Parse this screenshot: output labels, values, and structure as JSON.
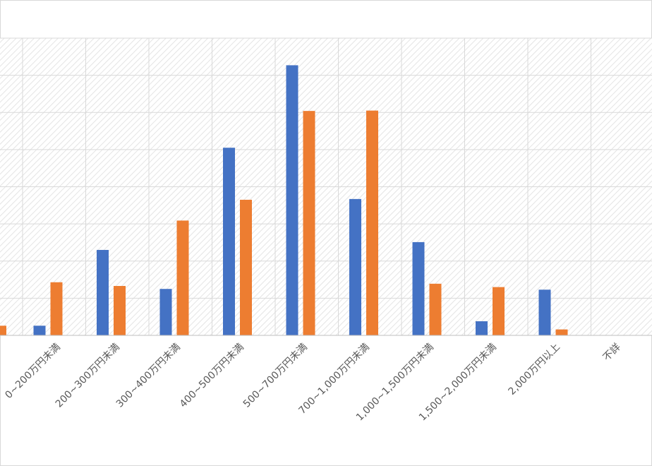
{
  "chart_data": {
    "type": "bar",
    "categories": [
      "0~200万円未満",
      "200~300万円未満",
      "300~400万円未満",
      "400~500万円未満",
      "500~700万円未満",
      "700~1,000万円未満",
      "1,000~1,500万円未満",
      "1,500~2,000万円未満",
      "2,000万円以上",
      "不詳"
    ],
    "series": [
      {
        "color": "#4472C4",
        "values": [
          2.6,
          23.0,
          12.5,
          50.5,
          72.7,
          36.7,
          25.1,
          3.8,
          12.3,
          0
        ]
      },
      {
        "color": "#ED7D31",
        "values": [
          14.3,
          13.3,
          30.9,
          36.5,
          60.4,
          60.5,
          13.9,
          13.0,
          1.6,
          0
        ]
      }
    ],
    "series_extra_visible": {
      "partial_orange_bar_value": 2.6
    },
    "ylim": [
      0,
      80
    ],
    "grid": true,
    "legend": "none"
  }
}
